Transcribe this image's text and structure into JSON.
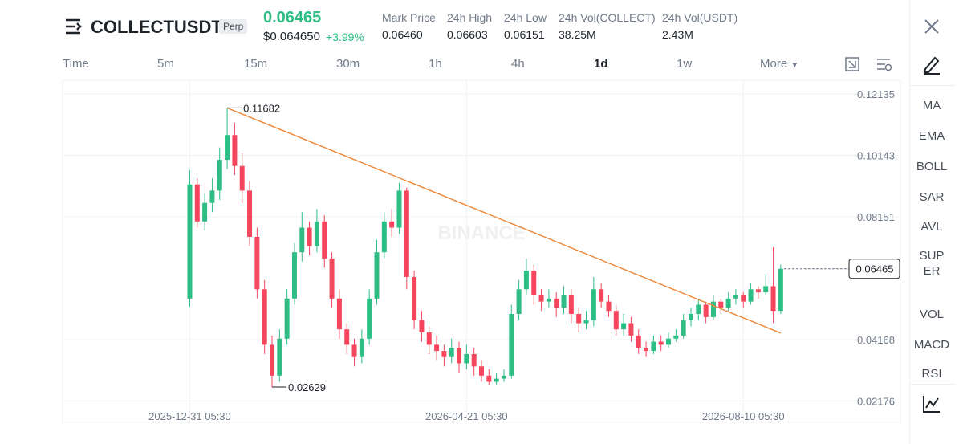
{
  "header": {
    "symbol": "COLLECTUSDT",
    "badge": "Perp",
    "price": "0.06465",
    "price_usd": "$0.064650",
    "change": "+3.99%",
    "stats": [
      {
        "label": "Mark Price",
        "value": "0.06460"
      },
      {
        "label": "24h High",
        "value": "0.06603"
      },
      {
        "label": "24h Low",
        "value": "0.06151"
      },
      {
        "label": "24h Vol(COLLECT)",
        "value": "38.25M"
      },
      {
        "label": "24h Vol(USDT)",
        "value": "2.43M"
      }
    ]
  },
  "toolbar": {
    "label": "Time",
    "intervals": [
      "5m",
      "15m",
      "30m",
      "1h",
      "4h",
      "1d",
      "1w"
    ],
    "active": "1d",
    "more": "More"
  },
  "sidebar": {
    "indicators": [
      "MA",
      "EMA",
      "BOLL",
      "SAR",
      "AVL",
      "SUPER",
      "VOL",
      "MACD",
      "RSI"
    ]
  },
  "chart_data": {
    "type": "candlestick",
    "watermark": "BINANCE",
    "up_color": "#2ebd85",
    "down_color": "#f6465d",
    "grid": true,
    "x": [
      "2025-12-31",
      "2026-01-03",
      "2026-01-06",
      "2026-01-09",
      "2026-01-12",
      "2026-01-15",
      "2026-01-18",
      "2026-01-21",
      "2026-01-24",
      "2026-01-27",
      "2026-01-30",
      "2026-02-02",
      "2026-02-05",
      "2026-02-08",
      "2026-02-11",
      "2026-02-14",
      "2026-02-17",
      "2026-02-20",
      "2026-02-23",
      "2026-02-26",
      "2026-03-01",
      "2026-03-04",
      "2026-03-07",
      "2026-03-10",
      "2026-03-13",
      "2026-03-16",
      "2026-03-19",
      "2026-03-22",
      "2026-03-25",
      "2026-03-28",
      "2026-03-31",
      "2026-04-03",
      "2026-04-06",
      "2026-04-09",
      "2026-04-12",
      "2026-04-15",
      "2026-04-18",
      "2026-04-21",
      "2026-04-24",
      "2026-04-27",
      "2026-04-30",
      "2026-05-03",
      "2026-05-06",
      "2026-05-09",
      "2026-05-12",
      "2026-05-15",
      "2026-05-18",
      "2026-05-21",
      "2026-05-24",
      "2026-05-27",
      "2026-05-30",
      "2026-06-02",
      "2026-06-05",
      "2026-06-08",
      "2026-06-11",
      "2026-06-14",
      "2026-06-17",
      "2026-06-20",
      "2026-06-23",
      "2026-06-26",
      "2026-06-29",
      "2026-07-02",
      "2026-07-05",
      "2026-07-08",
      "2026-07-11",
      "2026-07-14",
      "2026-07-17",
      "2026-07-20",
      "2026-07-23",
      "2026-07-26",
      "2026-07-29",
      "2026-08-01",
      "2026-08-04",
      "2026-08-07",
      "2026-08-10",
      "2026-08-13",
      "2026-08-16",
      "2026-08-19",
      "2026-08-22",
      "2026-08-25"
    ],
    "candles": [
      [
        0.055,
        0.0966,
        0.0523,
        0.092
      ],
      [
        0.092,
        0.094,
        0.078,
        0.08
      ],
      [
        0.08,
        0.089,
        0.077,
        0.086
      ],
      [
        0.086,
        0.094,
        0.083,
        0.09
      ],
      [
        0.09,
        0.104,
        0.087,
        0.1
      ],
      [
        0.1,
        0.11682,
        0.097,
        0.108
      ],
      [
        0.108,
        0.112,
        0.095,
        0.098
      ],
      [
        0.098,
        0.102,
        0.086,
        0.09
      ],
      [
        0.09,
        0.093,
        0.072,
        0.075
      ],
      [
        0.075,
        0.078,
        0.055,
        0.058
      ],
      [
        0.058,
        0.061,
        0.037,
        0.04
      ],
      [
        0.04,
        0.043,
        0.02629,
        0.03
      ],
      [
        0.03,
        0.045,
        0.028,
        0.042
      ],
      [
        0.042,
        0.058,
        0.04,
        0.055
      ],
      [
        0.055,
        0.073,
        0.053,
        0.07
      ],
      [
        0.07,
        0.083,
        0.067,
        0.078
      ],
      [
        0.078,
        0.08,
        0.069,
        0.072
      ],
      [
        0.072,
        0.084,
        0.07,
        0.08
      ],
      [
        0.08,
        0.082,
        0.065,
        0.068
      ],
      [
        0.068,
        0.07,
        0.052,
        0.055
      ],
      [
        0.055,
        0.058,
        0.042,
        0.045
      ],
      [
        0.045,
        0.047,
        0.037,
        0.04
      ],
      [
        0.04,
        0.042,
        0.033,
        0.036
      ],
      [
        0.036,
        0.045,
        0.034,
        0.042
      ],
      [
        0.042,
        0.058,
        0.04,
        0.055
      ],
      [
        0.055,
        0.074,
        0.053,
        0.07
      ],
      [
        0.07,
        0.083,
        0.068,
        0.08
      ],
      [
        0.08,
        0.084,
        0.075,
        0.078
      ],
      [
        0.078,
        0.0925,
        0.076,
        0.09
      ],
      [
        0.09,
        0.091,
        0.058,
        0.062
      ],
      [
        0.062,
        0.064,
        0.045,
        0.048
      ],
      [
        0.048,
        0.051,
        0.041,
        0.044
      ],
      [
        0.044,
        0.046,
        0.037,
        0.04
      ],
      [
        0.04,
        0.043,
        0.035,
        0.038
      ],
      [
        0.038,
        0.04,
        0.033,
        0.036
      ],
      [
        0.036,
        0.042,
        0.034,
        0.039
      ],
      [
        0.039,
        0.041,
        0.031,
        0.034
      ],
      [
        0.034,
        0.04,
        0.032,
        0.037
      ],
      [
        0.037,
        0.039,
        0.03,
        0.033
      ],
      [
        0.033,
        0.035,
        0.028,
        0.03
      ],
      [
        0.03,
        0.032,
        0.027,
        0.028
      ],
      [
        0.028,
        0.031,
        0.027,
        0.029
      ],
      [
        0.029,
        0.032,
        0.028,
        0.03
      ],
      [
        0.03,
        0.053,
        0.029,
        0.05
      ],
      [
        0.05,
        0.061,
        0.048,
        0.058
      ],
      [
        0.058,
        0.068,
        0.056,
        0.064
      ],
      [
        0.064,
        0.066,
        0.053,
        0.056
      ],
      [
        0.056,
        0.058,
        0.051,
        0.054
      ],
      [
        0.054,
        0.058,
        0.052,
        0.055
      ],
      [
        0.055,
        0.057,
        0.049,
        0.052
      ],
      [
        0.052,
        0.059,
        0.05,
        0.056
      ],
      [
        0.056,
        0.058,
        0.047,
        0.05
      ],
      [
        0.05,
        0.052,
        0.044,
        0.047
      ],
      [
        0.047,
        0.051,
        0.045,
        0.048
      ],
      [
        0.048,
        0.062,
        0.046,
        0.058
      ],
      [
        0.058,
        0.06,
        0.052,
        0.054
      ],
      [
        0.054,
        0.056,
        0.049,
        0.051
      ],
      [
        0.051,
        0.053,
        0.043,
        0.045
      ],
      [
        0.045,
        0.05,
        0.043,
        0.047
      ],
      [
        0.047,
        0.049,
        0.041,
        0.043
      ],
      [
        0.043,
        0.045,
        0.037,
        0.039
      ],
      [
        0.039,
        0.041,
        0.036,
        0.038
      ],
      [
        0.038,
        0.043,
        0.037,
        0.041
      ],
      [
        0.041,
        0.043,
        0.038,
        0.04
      ],
      [
        0.04,
        0.044,
        0.039,
        0.042
      ],
      [
        0.042,
        0.045,
        0.041,
        0.043
      ],
      [
        0.043,
        0.05,
        0.042,
        0.048
      ],
      [
        0.048,
        0.052,
        0.046,
        0.05
      ],
      [
        0.05,
        0.055,
        0.048,
        0.053
      ],
      [
        0.053,
        0.054,
        0.047,
        0.049
      ],
      [
        0.049,
        0.056,
        0.048,
        0.054
      ],
      [
        0.054,
        0.055,
        0.05,
        0.052
      ],
      [
        0.052,
        0.057,
        0.051,
        0.055
      ],
      [
        0.055,
        0.058,
        0.053,
        0.056
      ],
      [
        0.056,
        0.057,
        0.052,
        0.054
      ],
      [
        0.054,
        0.06,
        0.053,
        0.058
      ],
      [
        0.058,
        0.059,
        0.055,
        0.057
      ],
      [
        0.057,
        0.063,
        0.056,
        0.059
      ],
      [
        0.059,
        0.0716,
        0.047,
        0.051
      ],
      [
        0.051,
        0.066,
        0.05,
        0.06465
      ]
    ],
    "xlim": [
      "2025-11-10",
      "2026-10-12"
    ],
    "xticks": [
      {
        "value": "2025-12-31",
        "label": "2025-12-31 05:30"
      },
      {
        "value": "2026-04-21",
        "label": "2026-04-21 05:30"
      },
      {
        "value": "2026-08-10",
        "label": "2026-08-10 05:30"
      }
    ],
    "ylim": [
      0.01849,
      0.12578
    ],
    "yticks": [
      0.12135,
      0.10143,
      0.08151,
      0.04168,
      0.02176
    ],
    "trendline": {
      "x": [
        "2026-01-15",
        "2026-08-25"
      ],
      "values": [
        0.11682,
        0.0438
      ],
      "color": "#ee8a3c"
    }
  }
}
